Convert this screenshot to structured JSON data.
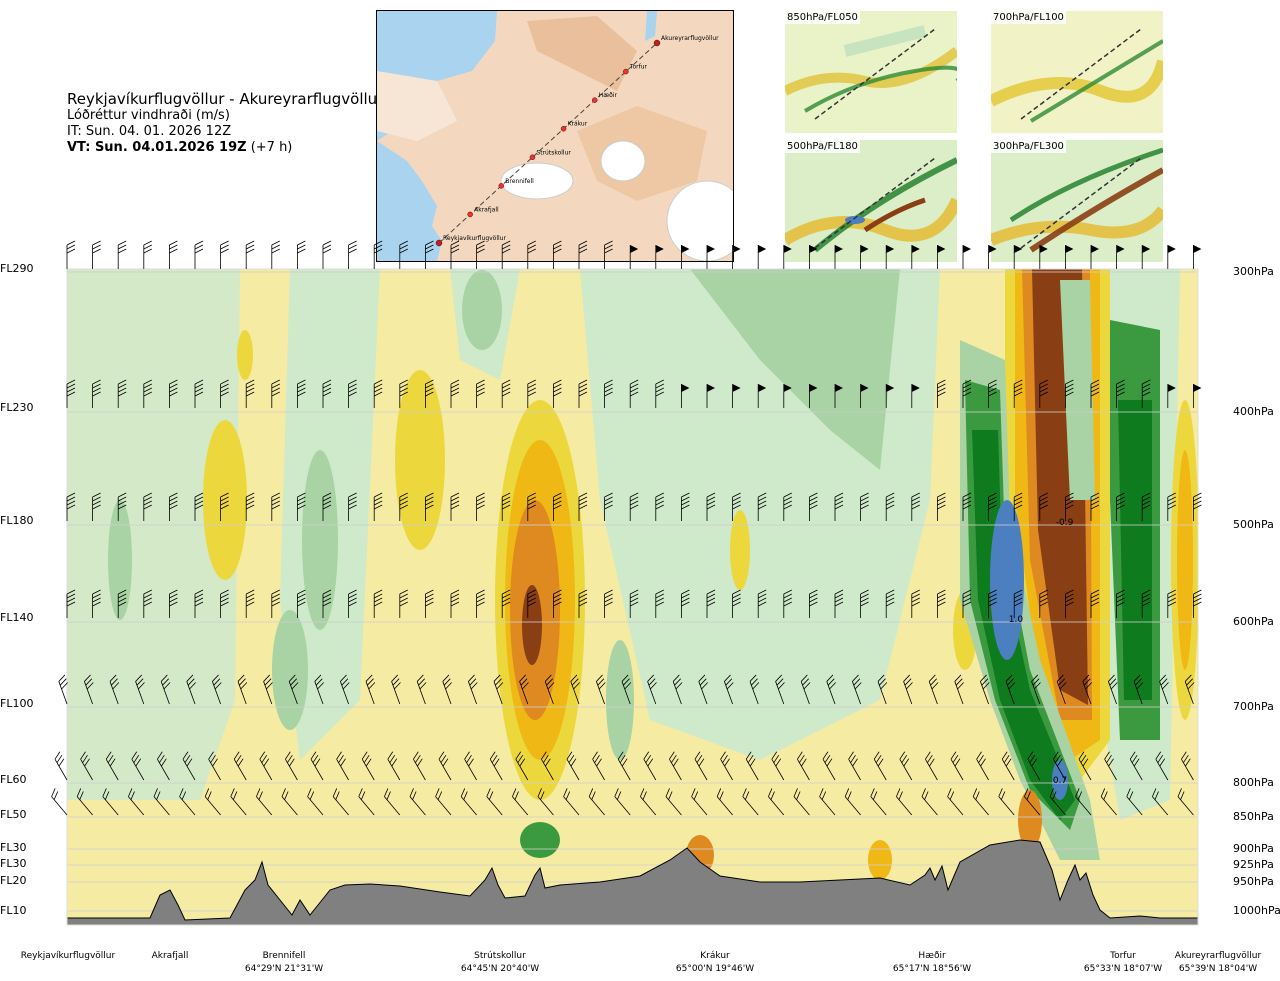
{
  "header": {
    "route": "Reykjavíkurflugvöllur - Akureyrarflugvöllur",
    "parameter": "Lóðréttur vindhraði (m/s)",
    "issue_time": "IT: Sun. 04. 01. 2026 12Z",
    "valid_time_bold": "VT: Sun. 04.01.2026 19Z",
    "valid_time_offset": "(+7 h)"
  },
  "map": {
    "waypoints": [
      {
        "name": "Reykjavíkurflugvöllur"
      },
      {
        "name": "Akrafjall"
      },
      {
        "name": "Brennifell"
      },
      {
        "name": "Strútskollur"
      },
      {
        "name": "Krákur"
      },
      {
        "name": "Hæðir"
      },
      {
        "name": "Torfur"
      },
      {
        "name": "Akureyrarflugvöllur"
      }
    ]
  },
  "thumbnails": [
    {
      "label": "850hPa/FL050"
    },
    {
      "label": "700hPa/FL100"
    },
    {
      "label": "500hPa/FL180"
    },
    {
      "label": "300hPa/FL300"
    }
  ],
  "axes": {
    "flight_levels": [
      {
        "label": "FL290",
        "y": 269
      },
      {
        "label": "FL230",
        "y": 408
      },
      {
        "label": "FL180",
        "y": 521
      },
      {
        "label": "FL140",
        "y": 618
      },
      {
        "label": "FL100",
        "y": 704
      },
      {
        "label": "FL60",
        "y": 780
      },
      {
        "label": "FL50",
        "y": 815
      },
      {
        "label": "FL30",
        "y": 848
      },
      {
        "label": "FL30",
        "y": 864
      },
      {
        "label": "FL20",
        "y": 881
      },
      {
        "label": "FL10",
        "y": 911
      }
    ],
    "pressure_levels": [
      {
        "label": "300hPa",
        "y": 272
      },
      {
        "label": "400hPa",
        "y": 412
      },
      {
        "label": "500hPa",
        "y": 525
      },
      {
        "label": "600hPa",
        "y": 622
      },
      {
        "label": "700hPa",
        "y": 707
      },
      {
        "label": "800hPa",
        "y": 783
      },
      {
        "label": "850hPa",
        "y": 817
      },
      {
        "label": "900hPa",
        "y": 849
      },
      {
        "label": "925hPa",
        "y": 865
      },
      {
        "label": "950hPa",
        "y": 882
      },
      {
        "label": "1000hPa",
        "y": 911
      }
    ]
  },
  "places": [
    {
      "name": "Reykjavíkurflugvöllur",
      "coord": "",
      "x": 68
    },
    {
      "name": "Akrafjall",
      "coord": "",
      "x": 170
    },
    {
      "name": "Brennifell",
      "coord": "64°29'N 21°31'W",
      "x": 284
    },
    {
      "name": "Strútskollur",
      "coord": "64°45'N 20°40'W",
      "x": 500
    },
    {
      "name": "Krákur",
      "coord": "65°00'N 19°46'W",
      "x": 715
    },
    {
      "name": "Hæðir",
      "coord": "65°17'N 18°56'W",
      "x": 932
    },
    {
      "name": "Torfur",
      "coord": "65°33'N 18°07'W",
      "x": 1123
    },
    {
      "name": "Akureyrarflugvöllur",
      "coord": "65°39'N 18°04'W",
      "x": 1218
    }
  ],
  "chart_data": {
    "type": "heatmap",
    "title": "Reykjavíkurflugvöllur - Akureyrarflugvöllur",
    "variable": "Lóðréttur vindhraði (m/s)",
    "x_axis": "distance along route",
    "y_axis": [
      "FL290",
      "FL230",
      "FL180",
      "FL140",
      "FL100",
      "FL60",
      "FL50",
      "FL30",
      "FL30",
      "FL20",
      "FL10"
    ],
    "y_axis_right": [
      "300hPa",
      "400hPa",
      "500hPa",
      "600hPa",
      "700hPa",
      "800hPa",
      "850hPa",
      "900hPa",
      "925hPa",
      "950hPa",
      "1000hPa"
    ],
    "annotations": [
      {
        "text": "-0.9",
        "x": 0.882,
        "level": "500hPa"
      },
      {
        "text": "1.0",
        "x": 0.839,
        "level": "600hPa"
      },
      {
        "text": "0.7",
        "x": 0.878,
        "level": "800hPa"
      }
    ],
    "colors": {
      "strong_up": "#4c7fbf",
      "up3": "#0e7b1e",
      "up2": "#3b9a3f",
      "up1": "#93c98c",
      "weak_up": "#cfe9cb",
      "weak_down": "#f6eba2",
      "down1": "#ecd83c",
      "down2": "#f0b814",
      "down3": "#de8a20",
      "strong_down": "#8a3e14",
      "terrain": "#808080"
    }
  }
}
